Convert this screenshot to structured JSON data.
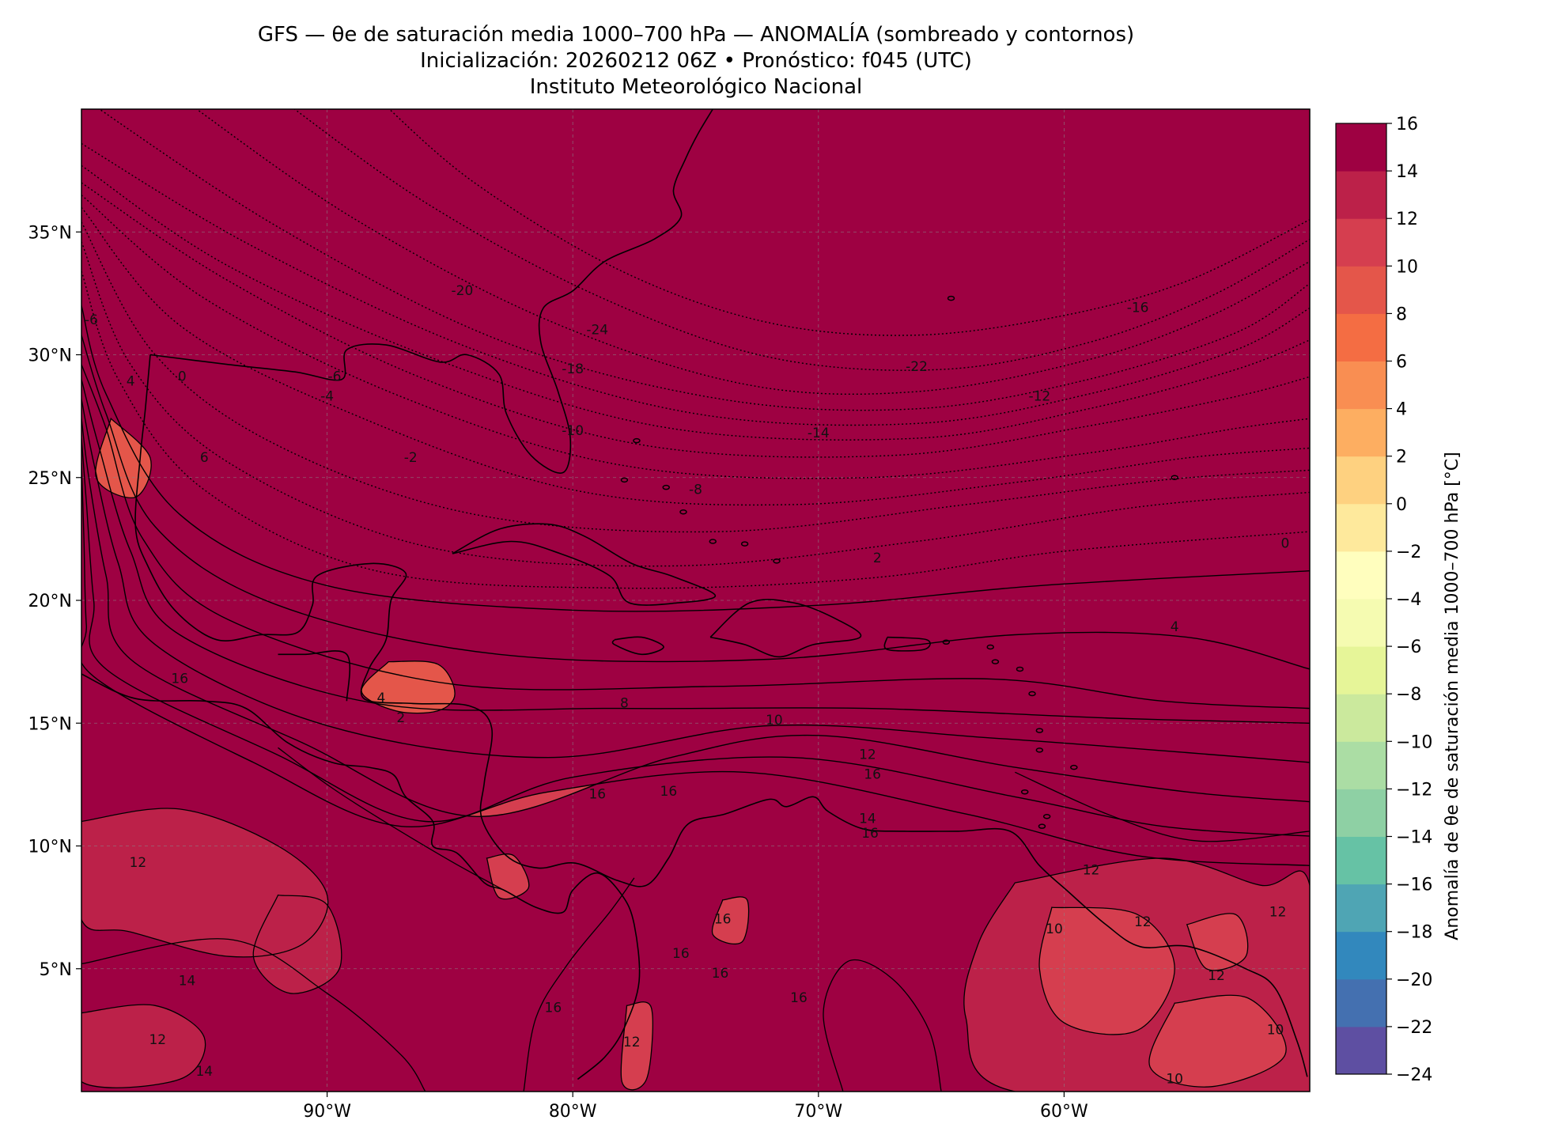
{
  "figure": {
    "title_line1": "GFS — θe de saturación media 1000–700 hPa — ANOMALÍA (sombreado y contornos)",
    "title_line2": "Inicialización: 20260212 06Z   •   Pronóstico: f045 (UTC)",
    "title_line3": "Instituto Meteorológico Nacional"
  },
  "map": {
    "lon_range": [
      -100,
      -50
    ],
    "lat_range": [
      0,
      40
    ],
    "lon_ticks": [
      -90,
      -80,
      -70,
      -60
    ],
    "lon_tick_labels": [
      "90°W",
      "80°W",
      "70°W",
      "60°W"
    ],
    "lat_ticks": [
      5,
      10,
      15,
      20,
      25,
      30,
      35
    ],
    "lat_tick_labels": [
      "5°N",
      "10°N",
      "15°N",
      "20°N",
      "25°N",
      "30°N",
      "35°N"
    ],
    "gridlines": true,
    "contour_labels": [
      {
        "text": "-24",
        "lon": -79.0,
        "lat": 31.0
      },
      {
        "text": "-22",
        "lon": -66.0,
        "lat": 29.5
      },
      {
        "text": "-20",
        "lon": -84.5,
        "lat": 32.6
      },
      {
        "text": "-18",
        "lon": -80.0,
        "lat": 29.4
      },
      {
        "text": "-16",
        "lon": -57.0,
        "lat": 31.9
      },
      {
        "text": "-14",
        "lon": -70.0,
        "lat": 26.8
      },
      {
        "text": "-12",
        "lon": -61.0,
        "lat": 28.3
      },
      {
        "text": "-10",
        "lon": -80.0,
        "lat": 26.9
      },
      {
        "text": "-8",
        "lon": -75.0,
        "lat": 24.5
      },
      {
        "text": "-6",
        "lon": -89.7,
        "lat": 29.1
      },
      {
        "text": "-4",
        "lon": -90.0,
        "lat": 28.3
      },
      {
        "text": "-2",
        "lon": -86.6,
        "lat": 25.8
      },
      {
        "text": "0",
        "lon": -95.9,
        "lat": 29.1
      },
      {
        "text": "2",
        "lon": -67.6,
        "lat": 21.7
      },
      {
        "text": "-6",
        "lon": -99.6,
        "lat": 31.4
      },
      {
        "text": "4",
        "lon": -98.0,
        "lat": 28.9
      },
      {
        "text": "6",
        "lon": -95.0,
        "lat": 25.8
      },
      {
        "text": "0",
        "lon": -51.0,
        "lat": 22.3
      },
      {
        "text": "4",
        "lon": -55.5,
        "lat": 18.9
      },
      {
        "text": "4",
        "lon": -87.8,
        "lat": 16.0
      },
      {
        "text": "2",
        "lon": -87.0,
        "lat": 15.2
      },
      {
        "text": "8",
        "lon": -77.9,
        "lat": 15.8
      },
      {
        "text": "10",
        "lon": -71.8,
        "lat": 15.1
      },
      {
        "text": "12",
        "lon": -68.0,
        "lat": 13.7
      },
      {
        "text": "16",
        "lon": -76.1,
        "lat": 12.2
      },
      {
        "text": "16",
        "lon": -79.0,
        "lat": 12.1
      },
      {
        "text": "16",
        "lon": -67.8,
        "lat": 12.9
      },
      {
        "text": "16",
        "lon": -67.9,
        "lat": 10.5
      },
      {
        "text": "14",
        "lon": -68.0,
        "lat": 11.1
      },
      {
        "text": "16",
        "lon": -96.0,
        "lat": 16.8
      },
      {
        "text": "16",
        "lon": -73.9,
        "lat": 7.0
      },
      {
        "text": "16",
        "lon": -75.6,
        "lat": 5.6
      },
      {
        "text": "16",
        "lon": -74.0,
        "lat": 4.8
      },
      {
        "text": "16",
        "lon": -80.8,
        "lat": 3.4
      },
      {
        "text": "16",
        "lon": -70.8,
        "lat": 3.8
      },
      {
        "text": "12",
        "lon": -97.7,
        "lat": 9.3
      },
      {
        "text": "14",
        "lon": -95.7,
        "lat": 4.5
      },
      {
        "text": "12",
        "lon": -96.9,
        "lat": 2.1
      },
      {
        "text": "14",
        "lon": -95.0,
        "lat": 0.8
      },
      {
        "text": "12",
        "lon": -77.6,
        "lat": 2.0
      },
      {
        "text": "12",
        "lon": -58.9,
        "lat": 9.0
      },
      {
        "text": "10",
        "lon": -60.4,
        "lat": 6.6
      },
      {
        "text": "12",
        "lon": -56.8,
        "lat": 6.9
      },
      {
        "text": "12",
        "lon": -53.8,
        "lat": 4.7
      },
      {
        "text": "12",
        "lon": -51.3,
        "lat": 7.3
      },
      {
        "text": "10",
        "lon": -51.4,
        "lat": 2.5
      },
      {
        "text": "10",
        "lon": -55.5,
        "lat": 0.5
      }
    ]
  },
  "colorbar": {
    "label": "Anomalía de θe de saturación media 1000–700 hPa [°C]",
    "levels": [
      -24,
      -22,
      -20,
      -18,
      -16,
      -14,
      -12,
      -10,
      -8,
      -6,
      -4,
      -2,
      0,
      2,
      4,
      6,
      8,
      10,
      12,
      14,
      16
    ],
    "tick_labels": [
      "−24",
      "−22",
      "−20",
      "−18",
      "−16",
      "−14",
      "−12",
      "−10",
      "−8",
      "−6",
      "−4",
      "−2",
      "0",
      "2",
      "4",
      "6",
      "8",
      "10",
      "12",
      "14",
      "16"
    ],
    "colors": [
      "#5e4fa2",
      "#4470b0",
      "#3288bd",
      "#4fa5b4",
      "#66c2a5",
      "#8ed0a4",
      "#abdda4",
      "#cbe99d",
      "#e6f598",
      "#f5fbb1",
      "#fffebe",
      "#fee99c",
      "#fed180",
      "#fdae61",
      "#f98e52",
      "#f46d43",
      "#e4564a",
      "#d53e4f",
      "#bc2149",
      "#9e0142"
    ]
  }
}
